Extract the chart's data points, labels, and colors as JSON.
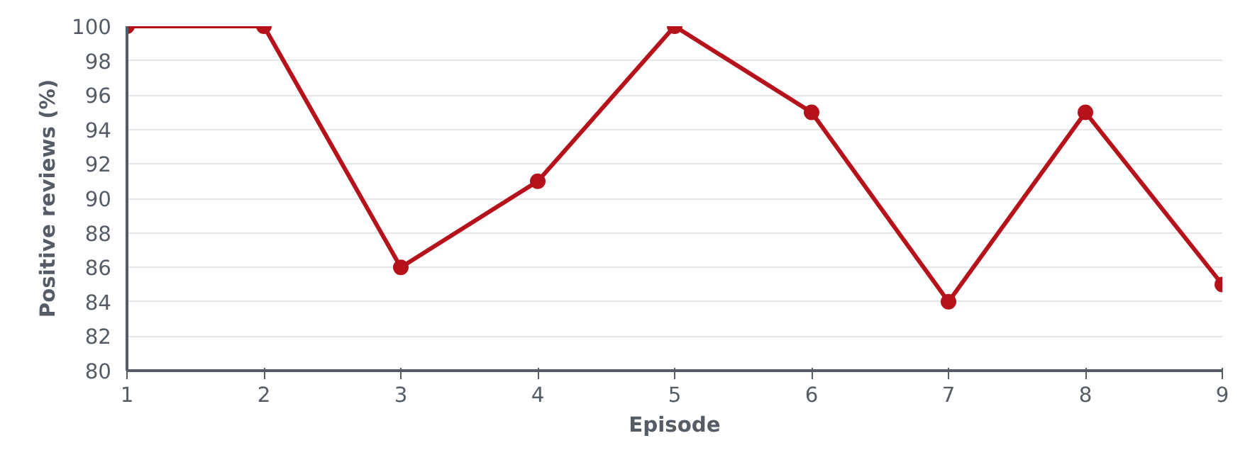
{
  "chart_data": {
    "type": "line",
    "xlabel": "Episode",
    "ylabel": "Positive reviews (%)",
    "x": [
      1,
      2,
      3,
      4,
      5,
      6,
      7,
      8,
      9
    ],
    "series": [
      {
        "color": "#b5121b",
        "values": [
          100,
          100,
          86,
          91,
          100,
          95,
          84,
          95,
          85
        ]
      }
    ],
    "xlim": [
      1,
      9
    ],
    "xticks": [
      1,
      2,
      3,
      4,
      5,
      6,
      7,
      8,
      9
    ],
    "ylim": [
      80,
      100
    ],
    "yticks": [
      80,
      82,
      84,
      86,
      88,
      90,
      92,
      94,
      96,
      98,
      100
    ],
    "grid": "y",
    "marker": "circle",
    "line_style": "solid"
  }
}
